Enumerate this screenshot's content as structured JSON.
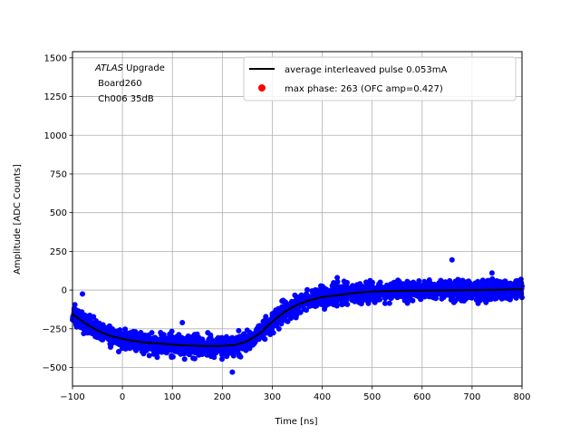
{
  "chart_data": {
    "type": "scatter",
    "title": "",
    "xlabel": "Time [ns]",
    "ylabel": "Amplitude [ADC Counts]",
    "xlim": [
      -100,
      800
    ],
    "ylim": [
      -620,
      1540
    ],
    "x_ticks": [
      -100,
      0,
      100,
      200,
      300,
      400,
      500,
      600,
      700,
      800
    ],
    "x_tick_labels": [
      "−100",
      "0",
      "100",
      "200",
      "300",
      "400",
      "500",
      "600",
      "700",
      "800"
    ],
    "y_ticks": [
      -500,
      -250,
      0,
      250,
      500,
      750,
      1000,
      1250,
      1500
    ],
    "y_tick_labels": [
      "−500",
      "−250",
      "0",
      "250",
      "500",
      "750",
      "1000",
      "1250",
      "1500"
    ],
    "grid": true,
    "legend_position": "top-right",
    "annotation": {
      "experiment": "ATLAS",
      "line1_rest": " Upgrade",
      "line2": " Board260",
      "line3": " Ch006 35dB"
    },
    "series": [
      {
        "name": "average interleaved pulse 0.053mA",
        "kind": "line",
        "color": "#000000",
        "x": [
          -100,
          -75,
          -50,
          -25,
          0,
          25,
          50,
          75,
          100,
          125,
          150,
          175,
          200,
          225,
          250,
          275,
          300,
          325,
          350,
          375,
          400,
          425,
          450,
          475,
          500,
          550,
          600,
          650,
          700,
          750,
          800
        ],
        "y": [
          -155,
          -215,
          -262,
          -295,
          -315,
          -330,
          -340,
          -345,
          -352,
          -357,
          -360,
          -362,
          -360,
          -355,
          -330,
          -280,
          -205,
          -140,
          -95,
          -65,
          -45,
          -35,
          -25,
          -15,
          -10,
          -5,
          -3,
          -2,
          0,
          2,
          5
        ]
      },
      {
        "name": "max phase: 263 (OFC amp=0.427)",
        "kind": "marker",
        "color": "#ff0000"
      },
      {
        "name": "samples",
        "kind": "scatter",
        "color": "#0000ff",
        "spread": 50,
        "outliers": [
          {
            "x": 660,
            "y": 195
          },
          {
            "x": -80,
            "y": -25
          },
          {
            "x": 120,
            "y": -210
          },
          {
            "x": 220,
            "y": -530
          },
          {
            "x": 430,
            "y": 80
          },
          {
            "x": 740,
            "y": 110
          }
        ]
      }
    ]
  }
}
